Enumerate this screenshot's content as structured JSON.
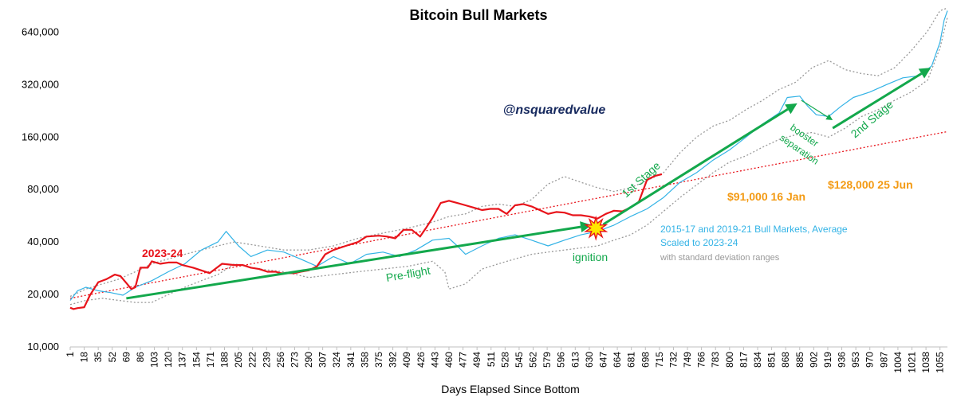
{
  "chart_data": {
    "type": "line",
    "title": "Bitcoin Bull Markets",
    "xlabel": "Days Elapsed Since Bottom",
    "ylabel": "",
    "y_scale": "log",
    "ylim": [
      10000,
      900000
    ],
    "xlim": [
      1,
      1064
    ],
    "grid": false,
    "x_ticks": [
      1,
      18,
      35,
      52,
      69,
      86,
      103,
      120,
      137,
      154,
      171,
      188,
      205,
      222,
      239,
      256,
      273,
      290,
      307,
      324,
      341,
      358,
      375,
      392,
      409,
      426,
      443,
      460,
      477,
      494,
      511,
      528,
      545,
      562,
      579,
      596,
      613,
      630,
      647,
      664,
      681,
      698,
      715,
      732,
      749,
      766,
      783,
      800,
      817,
      834,
      851,
      868,
      885,
      902,
      919,
      936,
      953,
      970,
      987,
      1004,
      1021,
      1038,
      1055
    ],
    "y_ticks": [
      {
        "value": 10000,
        "label": "10,000"
      },
      {
        "value": 20000,
        "label": "20,000"
      },
      {
        "value": 40000,
        "label": "40,000"
      },
      {
        "value": 80000,
        "label": "80,000"
      },
      {
        "value": 160000,
        "label": "160,000"
      },
      {
        "value": 320000,
        "label": "320,000"
      },
      {
        "value": 640000,
        "label": "640,000"
      }
    ],
    "series": [
      {
        "name": "2023-24",
        "color": "#e8141b",
        "style": "solid-thick",
        "x": [
          1,
          5,
          10,
          18,
          25,
          35,
          45,
          55,
          62,
          70,
          75,
          80,
          86,
          95,
          100,
          110,
          120,
          130,
          137,
          150,
          160,
          170,
          185,
          200,
          210,
          220,
          230,
          240,
          250,
          256,
          265,
          273,
          280,
          290,
          300,
          310,
          320,
          335,
          350,
          360,
          375,
          385,
          395,
          405,
          415,
          425,
          432,
          440,
          450,
          460,
          470,
          480,
          490,
          500,
          510,
          520,
          530,
          540,
          550,
          560,
          570,
          580,
          590,
          600,
          610,
          620,
          630,
          640,
          650,
          660,
          670,
          680,
          690,
          700,
          710,
          718
        ],
        "y": [
          16800,
          16500,
          16700,
          16900,
          19800,
          23500,
          24500,
          26000,
          25500,
          23000,
          21500,
          22000,
          28500,
          28500,
          31000,
          30000,
          30500,
          30500,
          29500,
          28500,
          27500,
          26500,
          30000,
          29500,
          29500,
          28500,
          28000,
          27000,
          27000,
          26500,
          26500,
          26500,
          27000,
          27500,
          29000,
          34000,
          36000,
          38000,
          40000,
          43000,
          43500,
          43000,
          42000,
          47000,
          47000,
          43000,
          48000,
          55000,
          67000,
          69000,
          67000,
          65000,
          63000,
          61000,
          62000,
          62000,
          58000,
          65000,
          66000,
          64000,
          61000,
          58000,
          59500,
          59000,
          57000,
          57000,
          56000,
          54500,
          58000,
          60500,
          60000,
          63000,
          68000,
          91000,
          96000,
          98000
        ]
      },
      {
        "name": "2015-17 and 2019-21 Bull Markets, Average Scaled to 2023-24",
        "color": "#33b3e6",
        "style": "solid",
        "x": [
          1,
          10,
          20,
          35,
          50,
          65,
          80,
          100,
          120,
          140,
          160,
          180,
          190,
          205,
          220,
          240,
          260,
          280,
          300,
          320,
          340,
          360,
          380,
          400,
          420,
          440,
          460,
          470,
          480,
          500,
          520,
          540,
          560,
          580,
          600,
          620,
          640,
          660,
          680,
          700,
          720,
          740,
          760,
          780,
          800,
          820,
          840,
          860,
          870,
          885,
          895,
          905,
          920,
          935,
          950,
          970,
          990,
          1010,
          1030,
          1045,
          1055,
          1060,
          1064
        ],
        "y": [
          18500,
          21000,
          22000,
          21000,
          20500,
          19800,
          22000,
          24000,
          27000,
          30000,
          36000,
          40000,
          46000,
          38000,
          33000,
          36000,
          35000,
          32000,
          29000,
          33000,
          30000,
          34000,
          35000,
          33000,
          36000,
          41000,
          42000,
          38000,
          34000,
          38000,
          42000,
          44000,
          41000,
          38000,
          41000,
          44000,
          46000,
          50000,
          56000,
          62000,
          72000,
          88000,
          100000,
          118000,
          135000,
          160000,
          190000,
          220000,
          270000,
          275000,
          240000,
          215000,
          210000,
          240000,
          270000,
          290000,
          320000,
          350000,
          360000,
          410000,
          560000,
          750000,
          850000
        ]
      },
      {
        "name": "upper standard deviation",
        "color": "#999999",
        "style": "dotted",
        "x": [
          1,
          20,
          40,
          60,
          80,
          100,
          120,
          140,
          160,
          180,
          200,
          230,
          260,
          290,
          320,
          350,
          380,
          410,
          440,
          460,
          480,
          500,
          520,
          540,
          560,
          580,
          600,
          620,
          640,
          660,
          680,
          700,
          720,
          740,
          760,
          780,
          800,
          820,
          840,
          860,
          880,
          900,
          920,
          940,
          960,
          980,
          1000,
          1020,
          1040,
          1055,
          1064
        ],
        "y": [
          19500,
          21500,
          23000,
          24500,
          27000,
          30000,
          32000,
          34000,
          36000,
          38000,
          40000,
          38000,
          36000,
          36000,
          38000,
          42000,
          45000,
          48000,
          52000,
          56000,
          58000,
          64000,
          66000,
          64000,
          70000,
          86000,
          95000,
          88000,
          82000,
          78000,
          82000,
          90000,
          100000,
          130000,
          160000,
          185000,
          200000,
          230000,
          260000,
          300000,
          330000,
          400000,
          440000,
          390000,
          370000,
          360000,
          400000,
          500000,
          650000,
          850000,
          880000
        ]
      },
      {
        "name": "lower standard deviation",
        "color": "#999999",
        "style": "dotted",
        "x": [
          1,
          20,
          40,
          60,
          80,
          100,
          120,
          140,
          160,
          180,
          200,
          230,
          260,
          290,
          320,
          350,
          380,
          410,
          440,
          455,
          460,
          480,
          500,
          520,
          540,
          560,
          580,
          600,
          620,
          640,
          660,
          680,
          700,
          720,
          740,
          760,
          780,
          800,
          820,
          840,
          860,
          880,
          900,
          920,
          940,
          960,
          980,
          1000,
          1020,
          1040,
          1055,
          1064
        ],
        "y": [
          17500,
          18500,
          19000,
          18500,
          18000,
          18000,
          20000,
          22000,
          24000,
          26000,
          30000,
          28000,
          27000,
          25000,
          26000,
          27000,
          28000,
          29000,
          31000,
          27000,
          21500,
          23000,
          28000,
          30000,
          32000,
          34000,
          35000,
          36000,
          37000,
          38000,
          41000,
          44000,
          50000,
          60000,
          72000,
          85000,
          100000,
          115000,
          125000,
          140000,
          155000,
          165000,
          170000,
          160000,
          180000,
          210000,
          230000,
          260000,
          290000,
          340000,
          520000,
          780000
        ]
      },
      {
        "name": "trend",
        "color": "#e8141b",
        "style": "dotted",
        "x": [
          1,
          1064
        ],
        "y": [
          19000,
          172000
        ]
      }
    ],
    "arrows": [
      {
        "label": "Pre-flight",
        "from": [
          69,
          19000
        ],
        "to": [
          633,
          50000
        ]
      },
      {
        "label": "1st Stage",
        "from": [
          647,
          50500
        ],
        "to": [
          882,
          250000
        ]
      },
      {
        "label": "booster separation",
        "from": [
          887,
          260000
        ],
        "to": [
          925,
          200000
        ]
      },
      {
        "label": "2nd Stage",
        "from": [
          925,
          180000
        ],
        "to": [
          1044,
          400000
        ]
      }
    ],
    "ignition": {
      "label": "ignition",
      "x": 638,
      "y": 48000
    },
    "annotations": {
      "handle": "@nsquaredvalue",
      "series_label_2023": "2023-24",
      "legend_line1": "2015-17 and 2019-21 Bull Markets, Average",
      "legend_line2": "Scaled to 2023-24",
      "legend_line3": "with standard deviation ranges",
      "price_label_jan": "$91,000  16 Jan",
      "price_label_jun": "$128,000  25 Jun",
      "stage1_label": "1st Stage",
      "stage2_label": "2nd Stage",
      "preflight_label": "Pre-flight",
      "booster_line1": "booster",
      "booster_line2": "separation",
      "ignition_label": "ignition"
    },
    "colors": {
      "red": "#e8141b",
      "blue": "#33b3e6",
      "green": "#13a84c",
      "orange": "#f39a13",
      "navy": "#16295e",
      "gray": "#999999"
    }
  }
}
